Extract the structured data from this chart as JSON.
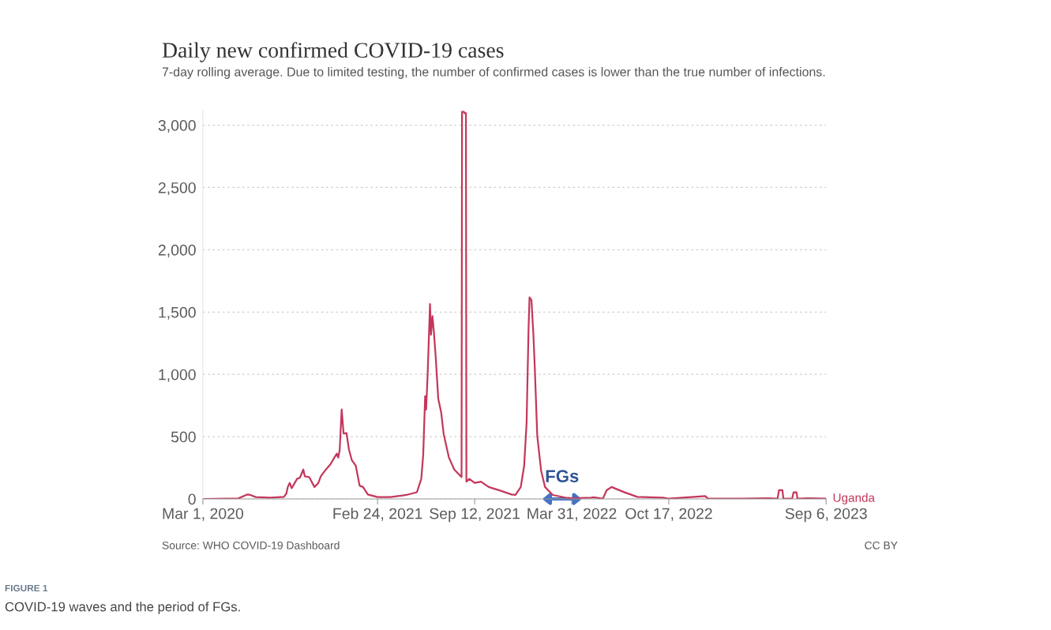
{
  "chart_data": {
    "type": "line",
    "title": "Daily new confirmed COVID-19 cases",
    "subtitle": "7-day rolling average. Due to limited testing, the number of confirmed cases is lower than the true number of infections.",
    "series": [
      {
        "name": "Uganda",
        "color": "#c4375b",
        "x": [
          "2020-03-01",
          "2020-05-13",
          "2020-06-01",
          "2020-06-07",
          "2020-06-18",
          "2020-07-18",
          "2020-08-15",
          "2020-08-20",
          "2020-08-23",
          "2020-08-27",
          "2020-08-31",
          "2020-09-11",
          "2020-09-17",
          "2020-09-24",
          "2020-09-27",
          "2020-10-06",
          "2020-10-17",
          "2020-10-25",
          "2020-10-30",
          "2020-11-08",
          "2020-11-19",
          "2020-11-27",
          "2020-12-02",
          "2020-12-05",
          "2020-12-08",
          "2020-12-12",
          "2020-12-16",
          "2020-12-22",
          "2020-12-27",
          "2021-01-02",
          "2021-01-10",
          "2021-01-18",
          "2021-01-25",
          "2021-02-04",
          "2021-02-24",
          "2021-03-22",
          "2021-04-24",
          "2021-05-16",
          "2021-05-25",
          "2021-05-29",
          "2021-06-02",
          "2021-06-04",
          "2021-06-07",
          "2021-06-12",
          "2021-06-14",
          "2021-06-17",
          "2021-06-20",
          "2021-06-24",
          "2021-06-29",
          "2021-07-05",
          "2021-07-10",
          "2021-07-21",
          "2021-08-01",
          "2021-08-16",
          "2021-08-17",
          "2021-08-21",
          "2021-08-22",
          "2021-08-25",
          "2021-08-26",
          "2021-09-01",
          "2021-09-12",
          "2021-09-25",
          "2021-10-11",
          "2021-11-06",
          "2021-11-27",
          "2021-12-05",
          "2021-12-16",
          "2021-12-23",
          "2021-12-28",
          "2022-01-01",
          "2022-01-03",
          "2022-01-07",
          "2022-01-11",
          "2022-01-14",
          "2022-01-19",
          "2022-01-27",
          "2022-02-04",
          "2022-02-20",
          "2022-03-18",
          "2022-04-03",
          "2022-05-10",
          "2022-05-15",
          "2022-06-03",
          "2022-06-11",
          "2022-06-21",
          "2022-07-18",
          "2022-08-13",
          "2022-10-05",
          "2022-10-16",
          "2022-12-31",
          "2023-01-06",
          "2023-03-17",
          "2023-05-10",
          "2023-05-29",
          "2023-06-01",
          "2023-06-08",
          "2023-06-10",
          "2023-06-28",
          "2023-07-01",
          "2023-07-07",
          "2023-07-09",
          "2023-07-31",
          "2023-09-06"
        ],
        "values": [
          0,
          4,
          36,
          32,
          15,
          10,
          17,
          43,
          96,
          129,
          86,
          161,
          171,
          236,
          182,
          176,
          96,
          129,
          182,
          229,
          279,
          332,
          364,
          332,
          396,
          718,
          525,
          529,
          396,
          311,
          268,
          107,
          96,
          36,
          15,
          15,
          32,
          54,
          161,
          354,
          825,
          718,
          986,
          1564,
          1318,
          1468,
          1339,
          1125,
          804,
          696,
          525,
          332,
          236,
          176,
          3107,
          3107,
          3096,
          3096,
          139,
          161,
          129,
          139,
          96,
          64,
          36,
          32,
          96,
          268,
          611,
          1361,
          1618,
          1596,
          1318,
          1039,
          504,
          225,
          96,
          32,
          11,
          6,
          11,
          13,
          2,
          70,
          96,
          53,
          17,
          11,
          2,
          23,
          2,
          2,
          6,
          2,
          70,
          70,
          2,
          2,
          53,
          53,
          2,
          6,
          2
        ]
      }
    ],
    "xlim": [
      "2020-03-01",
      "2023-09-06"
    ],
    "xticks": [
      {
        "value": "2020-03-01",
        "label": "Mar 1, 2020"
      },
      {
        "value": "2021-02-24",
        "label": "Feb 24, 2021"
      },
      {
        "value": "2021-09-12",
        "label": "Sep 12, 2021"
      },
      {
        "value": "2022-03-31",
        "label": "Mar 31, 2022"
      },
      {
        "value": "2022-10-17",
        "label": "Oct 17, 2022"
      },
      {
        "value": "2023-09-06",
        "label": "Sep 6, 2023"
      }
    ],
    "ylim": [
      0,
      3120
    ],
    "yticks": [
      0,
      500,
      {
        "value": 1000,
        "label": "1,000"
      },
      {
        "value": 1500,
        "label": "1,500"
      },
      {
        "value": 2000,
        "label": "2,000"
      },
      {
        "value": 2500,
        "label": "2,500"
      },
      {
        "value": 3000,
        "label": "3,000"
      }
    ],
    "grid": "y",
    "marker": "none",
    "line_style": "solid",
    "annotations": [
      {
        "text": "FGs",
        "x": "2022-03-11",
        "y": 0
      },
      "Source: WHO COVID-19 Dashboard",
      "CC BY",
      "FIGURE 1",
      "COVID-19 waves and the period of FGs."
    ]
  }
}
